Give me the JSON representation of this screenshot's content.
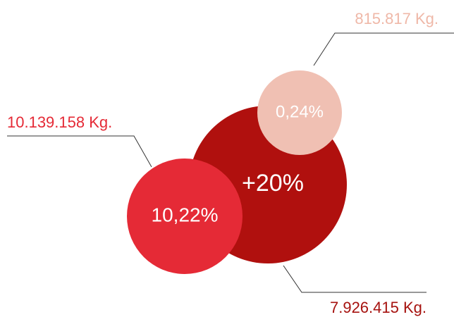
{
  "bubbles": [
    {
      "label": "+20%",
      "amount": "7.926.415 Kg."
    },
    {
      "label": "0,24%",
      "amount": "815.817 Kg."
    },
    {
      "label": "10,22%",
      "amount": "10.139.158 Kg."
    }
  ]
}
